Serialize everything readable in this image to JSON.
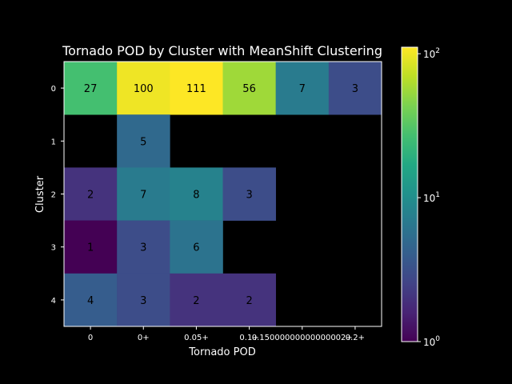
{
  "chart_data": {
    "type": "heatmap",
    "title": "Tornado POD by Cluster with MeanShift Clustering",
    "xlabel": "Tornado POD",
    "ylabel": "Cluster",
    "x_categories": [
      "0",
      "0+",
      "0.05+",
      "0.1+",
      "0.15000000000000002+",
      "0.2+"
    ],
    "y_categories": [
      "0",
      "1",
      "2",
      "3",
      "4"
    ],
    "values": [
      [
        27,
        100,
        111,
        56,
        7,
        3
      ],
      [
        null,
        5,
        null,
        null,
        null,
        null
      ],
      [
        2,
        7,
        8,
        3,
        null,
        null
      ],
      [
        1,
        3,
        6,
        null,
        null,
        null
      ],
      [
        4,
        3,
        2,
        2,
        null,
        null
      ]
    ],
    "cell_labels": [
      [
        "27",
        "100",
        "111",
        "56",
        "7",
        "3"
      ],
      [
        "",
        "5",
        "",
        "",
        "",
        ""
      ],
      [
        "2",
        "7",
        "8",
        "3",
        "",
        ""
      ],
      [
        "1",
        "3",
        "6",
        "",
        "",
        ""
      ],
      [
        "4",
        "3",
        "2",
        "2",
        "",
        ""
      ]
    ],
    "colorbar": {
      "scale": "log",
      "range": [
        1,
        111
      ],
      "colormap": "viridis",
      "ticks": [
        {
          "value": 1,
          "base": "10",
          "exp": "0"
        },
        {
          "value": 10,
          "base": "10",
          "exp": "1"
        },
        {
          "value": 100,
          "base": "10",
          "exp": "2"
        }
      ]
    },
    "background": "#000000",
    "grid": false
  }
}
